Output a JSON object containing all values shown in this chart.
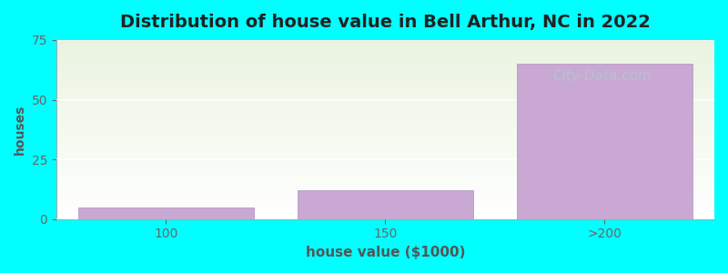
{
  "categories": [
    "100",
    "150",
    ">200"
  ],
  "values": [
    5,
    12,
    65
  ],
  "bar_color": "#c9a8d4",
  "bar_edge_color": "#b090c0",
  "title": "Distribution of house value in Bell Arthur, NC in 2022",
  "title_fontsize": 14,
  "title_color": "#222222",
  "xlabel": "house value ($1000)",
  "ylabel": "houses",
  "xlabel_fontsize": 11,
  "ylabel_fontsize": 10,
  "xlabel_color": "#555555",
  "ylabel_color": "#555555",
  "tick_label_color": "#666666",
  "tick_fontsize": 10,
  "ylim": [
    0,
    75
  ],
  "yticks": [
    0,
    25,
    50,
    75
  ],
  "outer_bg_color": "#00FFFF",
  "plot_bg_top_color": "#eaf3e0",
  "plot_bg_bottom_color": "#ffffff",
  "grid_color": "#ffffff",
  "watermark_text": "City-Data.com",
  "watermark_color": "#b0c8d0",
  "watermark_fontsize": 11
}
